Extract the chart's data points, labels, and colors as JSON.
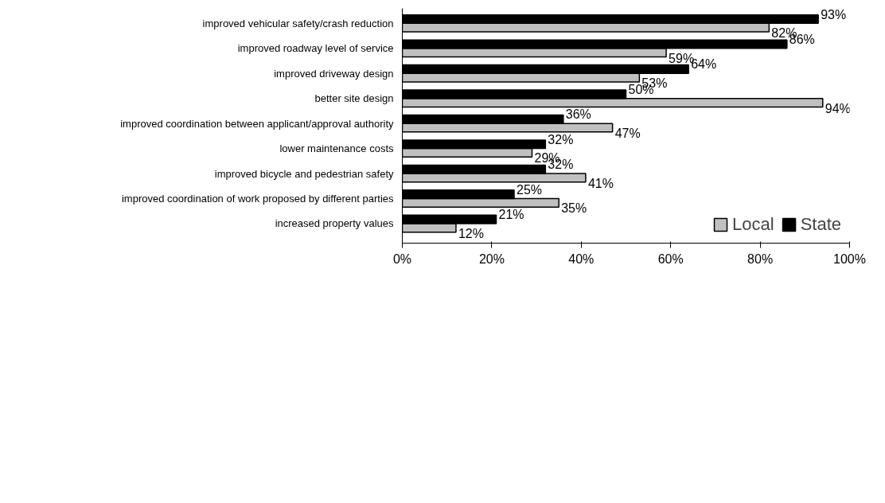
{
  "chart_data": {
    "type": "bar",
    "orientation": "horizontal",
    "categories": [
      "improved vehicular safety/crash reduction",
      "improved roadway level of service",
      "improved driveway design",
      "better site design",
      "improved coordination between applicant/approval authority",
      "lower maintenance costs",
      "improved bicycle and pedestrian safety",
      "improved coordination of work proposed by different parties",
      "increased property values"
    ],
    "series": [
      {
        "name": "Local",
        "color": "#c0c0c0",
        "values": [
          82,
          59,
          53,
          94,
          47,
          29,
          41,
          35,
          12
        ],
        "value_labels": [
          "82%",
          "59%",
          "53%",
          "94%",
          "47%",
          "29%",
          "41%",
          "35%",
          "12%"
        ]
      },
      {
        "name": "State",
        "color": "#000000",
        "values": [
          93,
          86,
          64,
          50,
          36,
          32,
          32,
          25,
          21
        ],
        "value_labels": [
          "93%",
          "86%",
          "64%",
          "50%",
          "36%",
          "32%",
          "32%",
          "25%",
          "21%"
        ]
      }
    ],
    "xlim": [
      0,
      100
    ],
    "xticks": [
      {
        "value": 0,
        "label": "0%"
      },
      {
        "value": 20,
        "label": "20%"
      },
      {
        "value": 40,
        "label": "40%"
      },
      {
        "value": 60,
        "label": "60%"
      },
      {
        "value": 80,
        "label": "80%"
      },
      {
        "value": 100,
        "label": "100%"
      }
    ],
    "grid": false,
    "legend": "bottom right"
  }
}
